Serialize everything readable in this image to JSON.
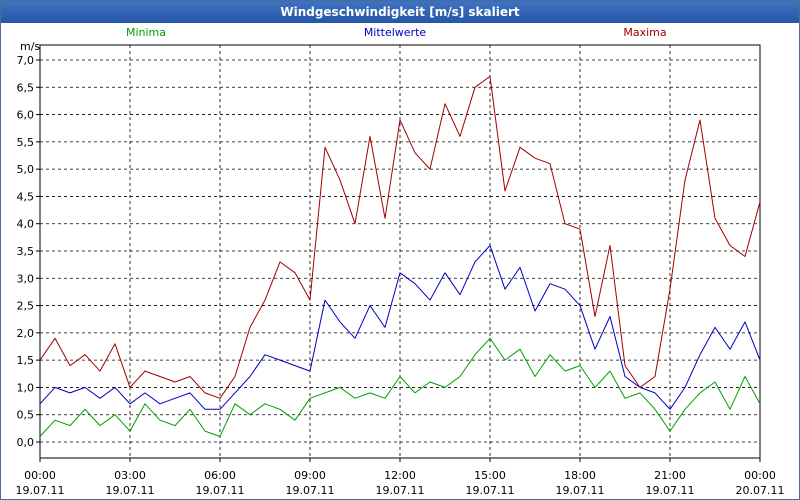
{
  "window": {
    "title": "Windgeschwindigkeit [m/s] skaliert"
  },
  "chart_data": {
    "type": "line",
    "title": "Windgeschwindigkeit [m/s] skaliert",
    "ylabel": "m/s",
    "xlabel": "",
    "ylim": [
      0,
      7.0
    ],
    "xlim": [
      "19.07.11 00:00",
      "20.07.11 00:00"
    ],
    "grid": true,
    "legend": "top",
    "y_ticks": [
      "0,0",
      "0,5",
      "1,0",
      "1,5",
      "2,0",
      "2,5",
      "3,0",
      "3,5",
      "4,0",
      "4,5",
      "5,0",
      "5,5",
      "6,0",
      "6,5",
      "7,0"
    ],
    "x_ticks": [
      {
        "time": "00:00",
        "date": "19.07.11"
      },
      {
        "time": "03:00",
        "date": "19.07.11"
      },
      {
        "time": "06:00",
        "date": "19.07.11"
      },
      {
        "time": "09:00",
        "date": "19.07.11"
      },
      {
        "time": "12:00",
        "date": "19.07.11"
      },
      {
        "time": "15:00",
        "date": "19.07.11"
      },
      {
        "time": "18:00",
        "date": "19.07.11"
      },
      {
        "time": "21:00",
        "date": "19.07.11"
      },
      {
        "time": "00:00",
        "date": "20.07.11"
      }
    ],
    "x_hours": [
      0,
      0.5,
      1,
      1.5,
      2,
      2.5,
      3,
      3.5,
      4,
      4.5,
      5,
      5.5,
      6,
      6.5,
      7,
      7.5,
      8,
      8.5,
      9,
      9.5,
      10,
      10.5,
      11,
      11.5,
      12,
      12.5,
      13,
      13.5,
      14,
      14.5,
      15,
      15.5,
      16,
      16.5,
      17,
      17.5,
      18,
      18.5,
      19,
      19.5,
      20,
      20.5,
      21,
      21.5,
      22,
      22.5,
      23,
      23.5,
      24
    ],
    "series": [
      {
        "name": "Minima",
        "color": "#00a000",
        "values": [
          0.1,
          0.4,
          0.3,
          0.6,
          0.3,
          0.5,
          0.2,
          0.7,
          0.4,
          0.3,
          0.6,
          0.2,
          0.1,
          0.7,
          0.5,
          0.7,
          0.6,
          0.4,
          0.8,
          0.9,
          1.0,
          0.8,
          0.9,
          0.8,
          1.2,
          0.9,
          1.1,
          1.0,
          1.2,
          1.6,
          1.9,
          1.5,
          1.7,
          1.2,
          1.6,
          1.3,
          1.4,
          1.0,
          1.3,
          0.8,
          0.9,
          0.6,
          0.2,
          0.6,
          0.9,
          1.1,
          0.6,
          1.2,
          0.7
        ]
      },
      {
        "name": "Mittelwerte",
        "color": "#0000c0",
        "values": [
          0.7,
          1.0,
          0.9,
          1.0,
          0.8,
          1.0,
          0.7,
          0.9,
          0.7,
          0.8,
          0.9,
          0.6,
          0.6,
          0.9,
          1.2,
          1.6,
          1.5,
          1.4,
          1.3,
          2.6,
          2.2,
          1.9,
          2.5,
          2.1,
          3.1,
          2.9,
          2.6,
          3.1,
          2.7,
          3.3,
          3.6,
          2.8,
          3.2,
          2.4,
          2.9,
          2.8,
          2.5,
          1.7,
          2.3,
          1.2,
          1.0,
          0.9,
          0.6,
          1.0,
          1.6,
          2.1,
          1.7,
          2.2,
          1.5
        ]
      },
      {
        "name": "Maxima",
        "color": "#a00000",
        "values": [
          1.5,
          1.9,
          1.4,
          1.6,
          1.3,
          1.8,
          1.0,
          1.3,
          1.2,
          1.1,
          1.2,
          0.9,
          0.8,
          1.2,
          2.1,
          2.6,
          3.3,
          3.1,
          2.6,
          5.4,
          4.8,
          4.0,
          5.6,
          4.1,
          5.9,
          5.3,
          5.0,
          6.2,
          5.6,
          6.5,
          6.7,
          4.6,
          5.4,
          5.2,
          5.1,
          4.0,
          3.9,
          2.3,
          3.6,
          1.4,
          1.0,
          1.2,
          2.8,
          4.8,
          5.9,
          4.1,
          3.6,
          3.4,
          4.4
        ]
      }
    ]
  }
}
